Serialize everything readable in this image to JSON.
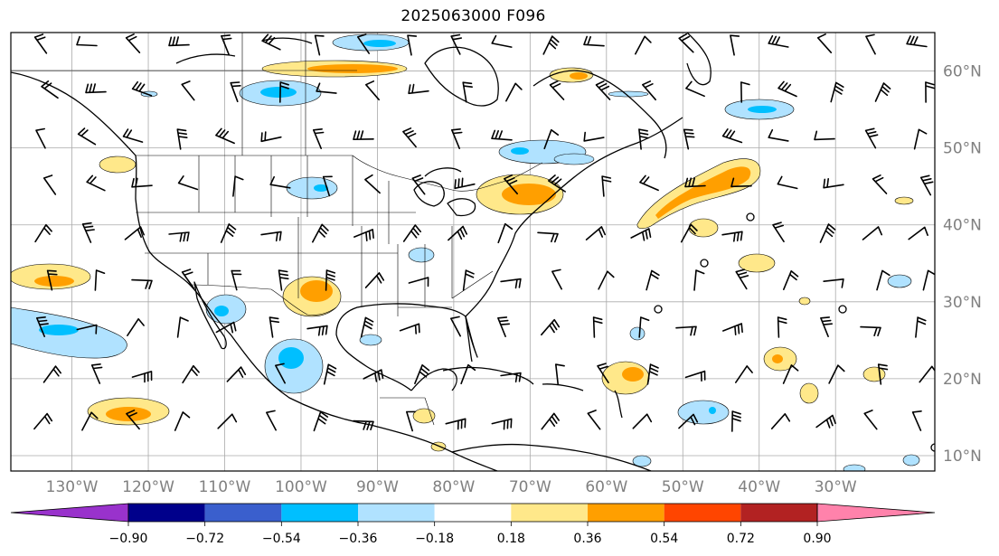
{
  "title": "2025063000 F096",
  "map": {
    "lon_range": [
      -138,
      -17
    ],
    "lat_range": [
      8,
      65
    ],
    "lon_labels": [
      {
        "lon": -130,
        "text": "130°W"
      },
      {
        "lon": -120,
        "text": "120°W"
      },
      {
        "lon": -110,
        "text": "110°W"
      },
      {
        "lon": -100,
        "text": "100°W"
      },
      {
        "lon": -90,
        "text": "90°W"
      },
      {
        "lon": -80,
        "text": "80°W"
      },
      {
        "lon": -70,
        "text": "70°W"
      },
      {
        "lon": -60,
        "text": "60°W"
      },
      {
        "lon": -50,
        "text": "50°W"
      },
      {
        "lon": -40,
        "text": "40°W"
      },
      {
        "lon": -30,
        "text": "30°W"
      }
    ],
    "lat_labels": [
      {
        "lat": 60,
        "text": "60°N"
      },
      {
        "lat": 50,
        "text": "50°N"
      },
      {
        "lat": 40,
        "text": "40°N"
      },
      {
        "lat": 30,
        "text": "30°N"
      },
      {
        "lat": 20,
        "text": "20°N"
      },
      {
        "lat": 10,
        "text": "10°N"
      }
    ],
    "grid": true,
    "wind_barbs": true
  },
  "colorbar": {
    "colors": [
      "#9932cc",
      "#00008b",
      "#3a5fcd",
      "#00bfff",
      "#b0e2ff",
      "#ffffff",
      "#ffe88a",
      "#ff9f00",
      "#ff4500",
      "#b22222",
      "#ff82ab"
    ],
    "ticks": [
      "−0.90",
      "−0.72",
      "−0.54",
      "−0.36",
      "−0.18",
      "0.18",
      "0.36",
      "0.54",
      "0.72",
      "0.90"
    ],
    "extend": "both"
  }
}
